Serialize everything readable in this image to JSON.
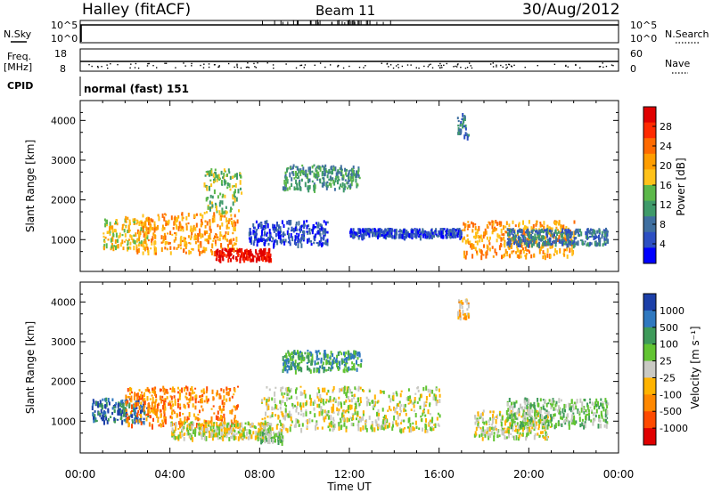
{
  "header": {
    "station": "Halley (fitACF)",
    "beam": "Beam 11",
    "date": "30/Aug/2012"
  },
  "panels": {
    "nsky": {
      "label": "N.Sky",
      "tick_top": "10^5",
      "tick_bottom": "10^0"
    },
    "nsearch": {
      "label": "N.Search",
      "tick_top": "10^5",
      "tick_bottom": "10^0"
    },
    "freq": {
      "label": "Freq.",
      "unit": "[MHz]",
      "tick_top": "18",
      "tick_bottom": "8"
    },
    "nave": {
      "label": "Nave",
      "tick_top": "60",
      "tick_bottom": "0"
    },
    "cpid": {
      "label": "CPID",
      "value": "normal (fast) 151"
    }
  },
  "colors": {
    "power_scale": [
      "#0000ff",
      "#2d4fc2",
      "#3f6fa0",
      "#3f9a6a",
      "#5cb84a",
      "#ffc21a",
      "#ff9d00",
      "#ff6a00",
      "#ff2a00",
      "#e00000"
    ],
    "velocity_scale": [
      "#1c3fa8",
      "#2f78bf",
      "#3e9a5a",
      "#62c432",
      "#c9c9c3",
      "#ffb300",
      "#ff8800",
      "#ff4a00",
      "#e00000"
    ]
  },
  "chart_data": [
    {
      "type": "heatmap",
      "name": "power",
      "ylabel": "Slant Range [km]",
      "xlabel": "",
      "x_ticks": [
        "00:00",
        "04:00",
        "08:00",
        "12:00",
        "16:00",
        "20:00",
        "00:00"
      ],
      "y_ticks": [
        "1000",
        "2000",
        "3000",
        "4000"
      ],
      "ylim": [
        200,
        4500
      ],
      "colorbar_label": "Power [dB]",
      "colorbar_ticks": [
        "4",
        "8",
        "12",
        "16",
        "20",
        "24",
        "28"
      ],
      "echo_regions_hours_km": [
        {
          "t0": 1.0,
          "t1": 3.0,
          "r0": 800,
          "r1": 1600,
          "level": 5
        },
        {
          "t0": 2.5,
          "t1": 7.0,
          "r0": 700,
          "r1": 1700,
          "level": 6
        },
        {
          "t0": 6.0,
          "t1": 8.5,
          "r0": 500,
          "r1": 800,
          "level": 9
        },
        {
          "t0": 5.5,
          "t1": 7.2,
          "r0": 1700,
          "r1": 2800,
          "level": 4
        },
        {
          "t0": 7.5,
          "t1": 11.0,
          "r0": 900,
          "r1": 1500,
          "level": 1
        },
        {
          "t0": 9.0,
          "t1": 12.5,
          "r0": 2300,
          "r1": 2900,
          "level": 3
        },
        {
          "t0": 12.0,
          "t1": 17.0,
          "r0": 1100,
          "r1": 1300,
          "level": 1
        },
        {
          "t0": 16.8,
          "t1": 17.3,
          "r0": 3600,
          "r1": 4200,
          "level": 2
        },
        {
          "t0": 17.0,
          "t1": 22.0,
          "r0": 600,
          "r1": 1500,
          "level": 6
        },
        {
          "t0": 19.0,
          "t1": 23.5,
          "r0": 900,
          "r1": 1300,
          "level": 2
        }
      ]
    },
    {
      "type": "heatmap",
      "name": "velocity",
      "ylabel": "Slant Range [km]",
      "xlabel": "Time UT",
      "x_ticks": [
        "00:00",
        "04:00",
        "08:00",
        "12:00",
        "16:00",
        "20:00",
        "00:00"
      ],
      "y_ticks": [
        "1000",
        "2000",
        "3000",
        "4000"
      ],
      "ylim": [
        200,
        4500
      ],
      "colorbar_label": "Velocity [m s⁻¹]",
      "colorbar_ticks": [
        "1000",
        "500",
        "100",
        "25",
        "-25",
        "-100",
        "-500",
        "-1000"
      ],
      "echo_regions_hours_km": [
        {
          "t0": 0.5,
          "t1": 3.0,
          "r0": 1000,
          "r1": 1600,
          "level": 1
        },
        {
          "t0": 2.0,
          "t1": 7.0,
          "r0": 900,
          "r1": 1900,
          "level": 6
        },
        {
          "t0": 4.0,
          "t1": 8.5,
          "r0": 600,
          "r1": 1000,
          "level": 4
        },
        {
          "t0": 8.0,
          "t1": 9.0,
          "r0": 500,
          "r1": 800,
          "level": 3
        },
        {
          "t0": 9.0,
          "t1": 12.5,
          "r0": 2300,
          "r1": 2800,
          "level": 2
        },
        {
          "t0": 8.0,
          "t1": 16.0,
          "r0": 800,
          "r1": 1900,
          "level": 4
        },
        {
          "t0": 16.8,
          "t1": 17.3,
          "r0": 3600,
          "r1": 4100,
          "level": 5
        },
        {
          "t0": 17.5,
          "t1": 21.0,
          "r0": 600,
          "r1": 1300,
          "level": 4
        },
        {
          "t0": 19.0,
          "t1": 23.5,
          "r0": 900,
          "r1": 1600,
          "level": 3
        }
      ]
    }
  ]
}
